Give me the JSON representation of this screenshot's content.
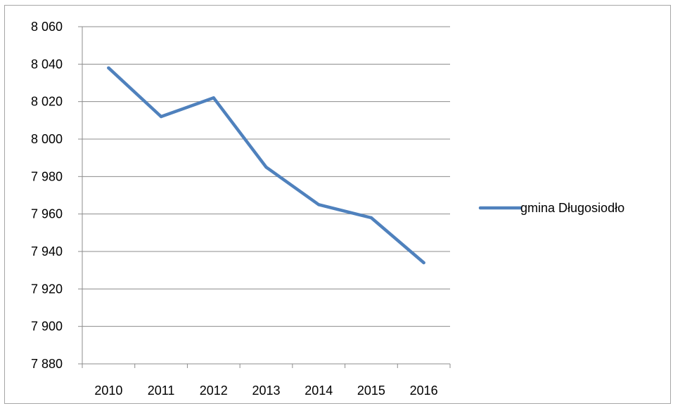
{
  "chart_data": {
    "type": "line",
    "title": "",
    "xlabel": "",
    "ylabel": "",
    "categories": [
      "2010",
      "2011",
      "2012",
      "2013",
      "2014",
      "2015",
      "2016"
    ],
    "series": [
      {
        "name": "gmina Długosiodło",
        "values": [
          8038,
          8012,
          8022,
          7985,
          7965,
          7958,
          7934
        ]
      }
    ],
    "ylim": [
      7880,
      8060
    ],
    "y_ticks": [
      7880,
      7900,
      7920,
      7940,
      7960,
      7980,
      8000,
      8020,
      8040,
      8060
    ],
    "y_tick_labels": [
      "7 880",
      "7 900",
      "7 920",
      "7 940",
      "7 960",
      "7 980",
      "8 000",
      "8 020",
      "8 040",
      "8 060"
    ],
    "grid": "horizontal",
    "legend_position": "right",
    "colors": {
      "series": "#4f81bd",
      "grid": "#8c8c8c",
      "axis": "#8c8c8c"
    }
  }
}
